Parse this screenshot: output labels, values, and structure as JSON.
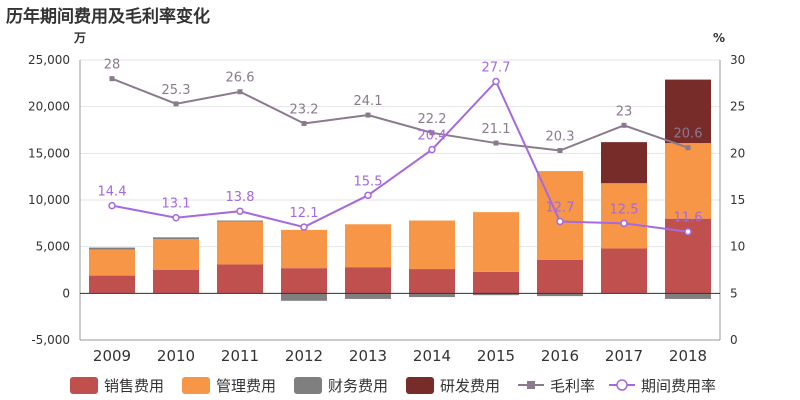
{
  "chart_data": {
    "type": "bar",
    "title": "历年期间费用及毛利率变化",
    "left_unit": "万",
    "right_unit": "%",
    "categories": [
      "2009",
      "2010",
      "2011",
      "2012",
      "2013",
      "2014",
      "2015",
      "2016",
      "2017",
      "2018"
    ],
    "left_axis": {
      "ylim": [
        -5000,
        25000
      ],
      "ticks": [
        "-5,000",
        "0",
        "5,000",
        "10,000",
        "15,000",
        "20,000",
        "25,000"
      ]
    },
    "right_axis": {
      "ylim": [
        0,
        30
      ],
      "ticks": [
        "0",
        "5",
        "10",
        "15",
        "20",
        "25",
        "30"
      ]
    },
    "bar_series": [
      {
        "name": "销售费用",
        "color": "#c0504d",
        "values": [
          1900,
          2500,
          3100,
          2700,
          2800,
          2600,
          2300,
          3600,
          4800,
          8000
        ]
      },
      {
        "name": "管理费用",
        "color": "#f79646",
        "values": [
          2800,
          3300,
          4600,
          4100,
          4600,
          5200,
          6400,
          9500,
          7000,
          8100
        ]
      },
      {
        "name": "财务费用",
        "color": "#7f7f7f",
        "values": [
          200,
          200,
          100,
          -800,
          -600,
          -400,
          -200,
          -300,
          0,
          -600
        ]
      },
      {
        "name": "研发费用",
        "color": "#772c2a",
        "values": [
          0,
          0,
          0,
          0,
          0,
          0,
          0,
          0,
          4400,
          6800
        ]
      }
    ],
    "line_series": [
      {
        "name": "毛利率",
        "color": "#8b7a8e",
        "marker": "square",
        "values": [
          28,
          25.3,
          26.6,
          23.2,
          24.1,
          22.2,
          21.1,
          20.3,
          23,
          20.6
        ],
        "labels": [
          "28",
          "25.3",
          "26.6",
          "23.2",
          "24.1",
          "22.2",
          "21.1",
          "20.3",
          "23",
          "20.6"
        ]
      },
      {
        "name": "期间费用率",
        "color": "#a569e0",
        "marker": "circle",
        "values": [
          14.4,
          13.1,
          13.8,
          12.1,
          15.5,
          20.4,
          27.7,
          12.7,
          12.5,
          11.6
        ],
        "labels": [
          "14.4",
          "13.1",
          "13.8",
          "12.1",
          "15.5",
          "20.4",
          "27.7",
          "12.7",
          "12.5",
          "11.6"
        ]
      }
    ],
    "legend_position": "bottom",
    "grid": true
  }
}
